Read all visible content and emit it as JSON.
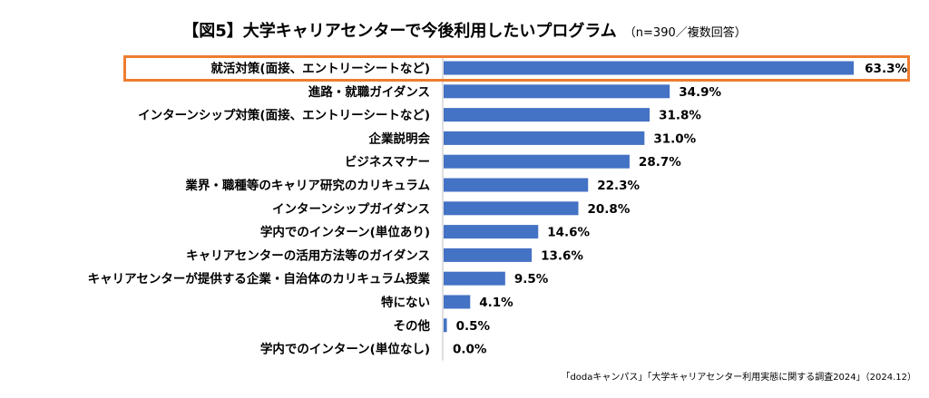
{
  "title": "【図5】大学キャリアセンターで今後利用したいプログラム",
  "subtitle": "（n=390／複数回答）",
  "source": "「dodaキャンパス」「大学キャリアセンター利用実態に関する調査2024」（2024.12）",
  "colors": {
    "bar": "#4472C4",
    "highlight_border": "#ED7D31",
    "axis": "#BFBFBF"
  },
  "chart_data": {
    "type": "bar",
    "orientation": "horizontal",
    "unit": "%",
    "categories": [
      "就活対策(面接、エントリーシートなど)",
      "進路・就職ガイダンス",
      "インターンシップ対策(面接、エントリーシートなど)",
      "企業説明会",
      "ビジネスマナー",
      "業界・職種等のキャリア研究のカリキュラム",
      "インターンシップガイダンス",
      "学内でのインターン(単位あり)",
      "キャリアセンターの活用方法等のガイダンス",
      "キャリアセンターが提供する企業・自治体のカリキュラム授業",
      "特にない",
      "その他",
      "学内でのインターン(単位なし)"
    ],
    "values": [
      63.3,
      34.9,
      31.8,
      31.0,
      28.7,
      22.3,
      20.8,
      14.6,
      13.6,
      9.5,
      4.1,
      0.5,
      0.0
    ],
    "value_labels": [
      "63.3%",
      "34.9%",
      "31.8%",
      "31.0%",
      "28.7%",
      "22.3%",
      "20.8%",
      "14.6%",
      "13.6%",
      "9.5%",
      "4.1%",
      "0.5%",
      "0.0%"
    ],
    "highlighted_category": "就活対策(面接、エントリーシートなど)",
    "grid": false,
    "legend": "none"
  }
}
